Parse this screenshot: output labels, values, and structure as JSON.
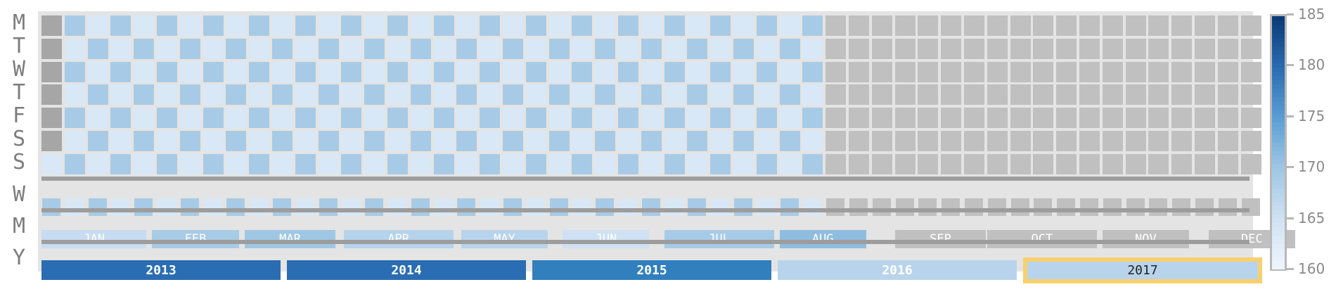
{
  "row_labels": {
    "day_rows": [
      "M",
      "T",
      "W",
      "T",
      "F",
      "S",
      "S"
    ],
    "week_row": "W",
    "month_row": "M",
    "year_row": "Y"
  },
  "calendar": {
    "selected_year": "2017",
    "years": [
      {
        "label": "2013",
        "color": "#2a6db2"
      },
      {
        "label": "2014",
        "color": "#2a6db2"
      },
      {
        "label": "2015",
        "color": "#327fbe"
      },
      {
        "label": "2016",
        "color": "#b8d4ec"
      },
      {
        "label": "2017",
        "color": "#b8d4ec"
      }
    ],
    "months": [
      {
        "label": "JAN",
        "color": "#c7dcf1"
      },
      {
        "label": "FEB",
        "color": "#a8cbe6"
      },
      {
        "label": "MAR",
        "color": "#9fc7e4"
      },
      {
        "label": "APR",
        "color": "#b6d3ec"
      },
      {
        "label": "MAY",
        "color": "#b8d4ec"
      },
      {
        "label": "JUN",
        "color": "#cfe1f3"
      },
      {
        "label": "JUL",
        "color": "#a7cbe6"
      },
      {
        "label": "AUG",
        "color": "#8fbde0"
      },
      {
        "label": "SEP",
        "color": "#c0c0c0"
      },
      {
        "label": "OCT",
        "color": "#c0c0c0"
      },
      {
        "label": "NOV",
        "color": "#c0c0c0"
      },
      {
        "label": "DEC",
        "color": "#c0c0c0"
      }
    ]
  },
  "colorbar": {
    "min": 160,
    "max": 185,
    "ticks": [
      "185",
      "180",
      "175",
      "170",
      "165",
      "160"
    ],
    "stops": [
      "#eef4fb",
      "#cfe1f3",
      "#9ec6e5",
      "#5c9fd4",
      "#2a6db2",
      "#0d3b78"
    ]
  },
  "no_data_color": "#c0c0c0",
  "missing_cell_color": "#a6a6a6"
}
